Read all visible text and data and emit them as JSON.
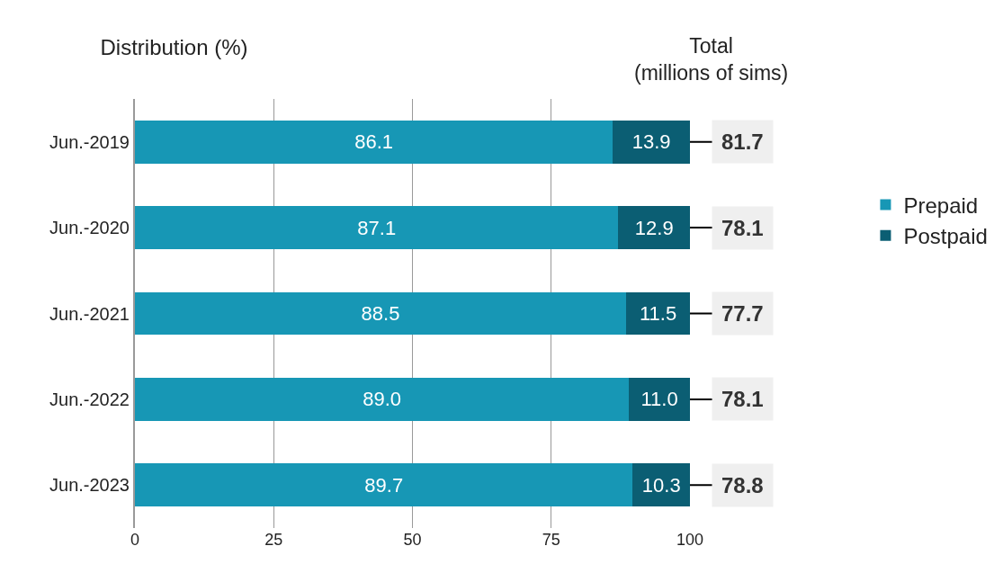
{
  "chart_data": {
    "type": "bar",
    "orientation": "horizontal",
    "stacked": true,
    "title": "Distribution (%)",
    "categories": [
      "Jun.-2019",
      "Jun.-2020",
      "Jun.-2021",
      "Jun.-2022",
      "Jun.-2023"
    ],
    "series": [
      {
        "name": "Prepaid",
        "color": "#1797b5",
        "values": [
          86.1,
          87.1,
          88.5,
          89.0,
          89.7
        ],
        "value_labels": [
          "86.1",
          "87.1",
          "88.5",
          "89.0",
          "89.7"
        ]
      },
      {
        "name": "Postpaid",
        "color": "#0b5e73",
        "values": [
          13.9,
          12.9,
          11.5,
          11.0,
          10.3
        ],
        "value_labels": [
          "13.9",
          "12.9",
          "11.5",
          "11.0",
          "10.3"
        ]
      }
    ],
    "xlim": [
      0,
      100
    ],
    "xticks": [
      0,
      25,
      50,
      75,
      100
    ],
    "grid": "x",
    "legend": "right",
    "annotations": [
      "Total\n(millions of sims)",
      "81.7",
      "78.1",
      "77.7",
      "78.1",
      "78.8"
    ]
  }
}
